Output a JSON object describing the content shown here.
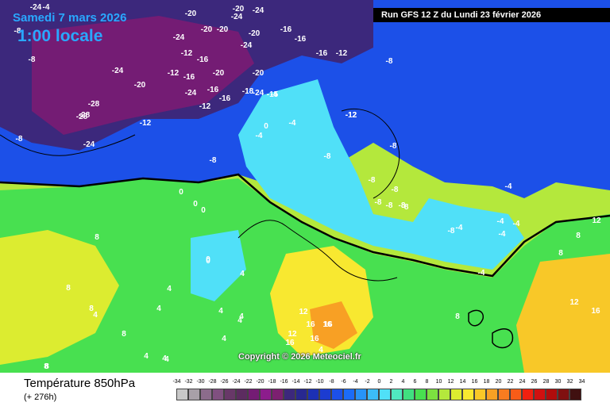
{
  "header": {
    "date": "Samedi 7 mars 2026",
    "time": "1:00 locale",
    "run": "Run GFS 12 Z du Lundi 23 février 2026"
  },
  "copyright": "Copyright © 2026 Meteociel.fr",
  "footer": {
    "title": "Température 850hPa",
    "subtitle": "(+ 276h)"
  },
  "legend": {
    "ticks": [
      "-34",
      "-32",
      "-30",
      "-28",
      "-26",
      "-24",
      "-22",
      "-20",
      "-18",
      "-16",
      "-14",
      "-12",
      "-10",
      "-8",
      "-6",
      "-4",
      "-2",
      "0",
      "2",
      "4",
      "6",
      "8",
      "10",
      "12",
      "14",
      "16",
      "18",
      "20",
      "22",
      "24",
      "26",
      "28",
      "30",
      "32",
      "34"
    ],
    "colors": [
      "#c8c8c8",
      "#a8a0a8",
      "#8c6c8c",
      "#805080",
      "#683868",
      "#5c2c60",
      "#741c74",
      "#8c1c8c",
      "#7c2070",
      "#3c287c",
      "#282890",
      "#1c30b4",
      "#1c3cd0",
      "#1c50e8",
      "#1c6cf8",
      "#2894f8",
      "#3cbcf8",
      "#50e0f8",
      "#50e8c0",
      "#40e080",
      "#48e050",
      "#7ce040",
      "#b4e83c",
      "#dcec30",
      "#f8e830",
      "#f8c828",
      "#f8a024",
      "#f87c20",
      "#f85c18",
      "#f02010",
      "#d01010",
      "#b00c0c",
      "#801010",
      "#401010"
    ]
  },
  "map_labels": [
    {
      "text": "-24"
    },
    {
      "text": "-4"
    },
    {
      "text": "-8"
    },
    {
      "text": "-20"
    },
    {
      "text": "-20"
    },
    {
      "text": "-24"
    },
    {
      "text": "-20"
    },
    {
      "text": "-24"
    },
    {
      "text": "-16"
    },
    {
      "text": "-8"
    },
    {
      "text": "-24"
    },
    {
      "text": "-20"
    },
    {
      "text": "-20"
    },
    {
      "text": "-24"
    },
    {
      "text": "-12"
    },
    {
      "text": "-16"
    },
    {
      "text": "-16"
    },
    {
      "text": "-12"
    },
    {
      "text": "-8"
    },
    {
      "text": "-24"
    },
    {
      "text": "-20"
    },
    {
      "text": "-12"
    },
    {
      "text": "-16"
    },
    {
      "text": "-20"
    },
    {
      "text": "-12"
    },
    {
      "text": "-16"
    },
    {
      "text": "-24"
    },
    {
      "text": "-20"
    },
    {
      "text": "-28"
    },
    {
      "text": "-24"
    },
    {
      "text": "-16"
    },
    {
      "text": "-18"
    },
    {
      "text": "-15"
    },
    {
      "text": "-8"
    },
    {
      "text": "-28"
    },
    {
      "text": "-16"
    },
    {
      "text": "-28"
    },
    {
      "text": "-12"
    },
    {
      "text": "-4"
    },
    {
      "text": "-4"
    },
    {
      "text": "-12"
    },
    {
      "text": "-12"
    },
    {
      "text": "-24"
    },
    {
      "text": "-8"
    },
    {
      "text": "0"
    },
    {
      "text": "-4"
    },
    {
      "text": "-8"
    },
    {
      "text": "-8"
    },
    {
      "text": "-8"
    },
    {
      "text": "0"
    },
    {
      "text": "-8"
    },
    {
      "text": "-8"
    },
    {
      "text": "0"
    },
    {
      "text": "0"
    },
    {
      "text": "-8"
    },
    {
      "text": "-8"
    },
    {
      "text": "-8"
    },
    {
      "text": "-4"
    },
    {
      "text": "-8"
    },
    {
      "text": "8"
    },
    {
      "text": "-4"
    },
    {
      "text": "-4"
    },
    {
      "text": "4"
    },
    {
      "text": "-4"
    },
    {
      "text": "8"
    },
    {
      "text": "4"
    },
    {
      "text": "8"
    },
    {
      "text": "4"
    },
    {
      "text": "0"
    },
    {
      "text": "-4"
    },
    {
      "text": "-4"
    },
    {
      "text": "8"
    },
    {
      "text": "8"
    },
    {
      "text": "4"
    },
    {
      "text": "12"
    },
    {
      "text": "4"
    },
    {
      "text": "4"
    },
    {
      "text": "12"
    },
    {
      "text": "8"
    },
    {
      "text": "12"
    },
    {
      "text": "16"
    },
    {
      "text": "4"
    },
    {
      "text": "4"
    },
    {
      "text": "12"
    },
    {
      "text": "16"
    },
    {
      "text": "16"
    },
    {
      "text": "8"
    },
    {
      "text": "16"
    },
    {
      "text": "4"
    },
    {
      "text": "8"
    },
    {
      "text": "0"
    },
    {
      "text": "4"
    },
    {
      "text": "4"
    },
    {
      "text": "4"
    },
    {
      "text": "16"
    },
    {
      "text": "16"
    },
    {
      "text": "8"
    }
  ]
}
